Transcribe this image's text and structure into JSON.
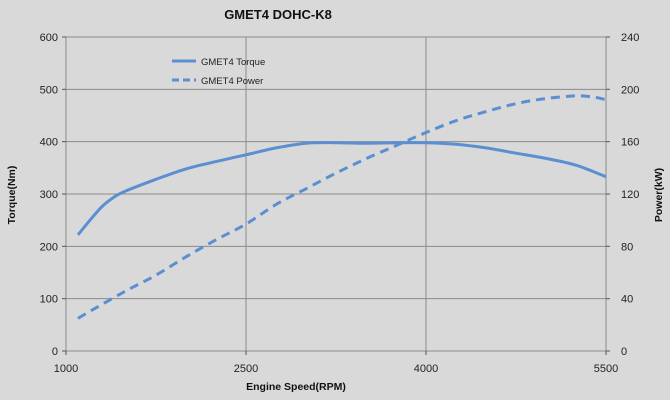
{
  "chart_data": {
    "type": "line",
    "title": "GMET4 DOHC-K8",
    "xlabel": "Engine Speed(RPM)",
    "ylabel": "Torque(Nm)",
    "y2label": "Power(kW)",
    "xlim": [
      1000,
      5500
    ],
    "ylim": [
      0,
      600
    ],
    "y2lim": [
      0,
      240
    ],
    "xticks": [
      "1000",
      "2500",
      "4000",
      "5500"
    ],
    "yticks": [
      "0",
      "100",
      "200",
      "300",
      "400",
      "500",
      "600"
    ],
    "y2ticks": [
      "0",
      "40",
      "80",
      "120",
      "160",
      "200",
      "240"
    ],
    "grid": true,
    "legend_position": "top-left",
    "series": [
      {
        "name": "GMET4 Torque",
        "axis": "left",
        "style": "solid",
        "color": "#5b8fd1",
        "x": [
          1100,
          1200,
          1300,
          1400,
          1500,
          1750,
          2000,
          2250,
          2500,
          2750,
          3000,
          3250,
          3500,
          3750,
          4000,
          4250,
          4500,
          4750,
          5000,
          5250,
          5500
        ],
        "y": [
          222,
          250,
          276,
          294,
          306,
          328,
          348,
          362,
          375,
          388,
          397,
          398,
          397,
          398,
          398,
          395,
          388,
          378,
          368,
          355,
          333
        ]
      },
      {
        "name": "GMET4 Power",
        "axis": "right",
        "style": "dashed",
        "color": "#5b8fd1",
        "x": [
          1100,
          1250,
          1500,
          1750,
          2000,
          2250,
          2500,
          2750,
          3000,
          3250,
          3500,
          3750,
          4000,
          4250,
          4500,
          4750,
          5000,
          5250,
          5400,
          5500
        ],
        "y": [
          25,
          33,
          46,
          58,
          72,
          85,
          97,
          112,
          124,
          136,
          147,
          157,
          167,
          176,
          183,
          189,
          193,
          195,
          194,
          192
        ]
      }
    ]
  }
}
